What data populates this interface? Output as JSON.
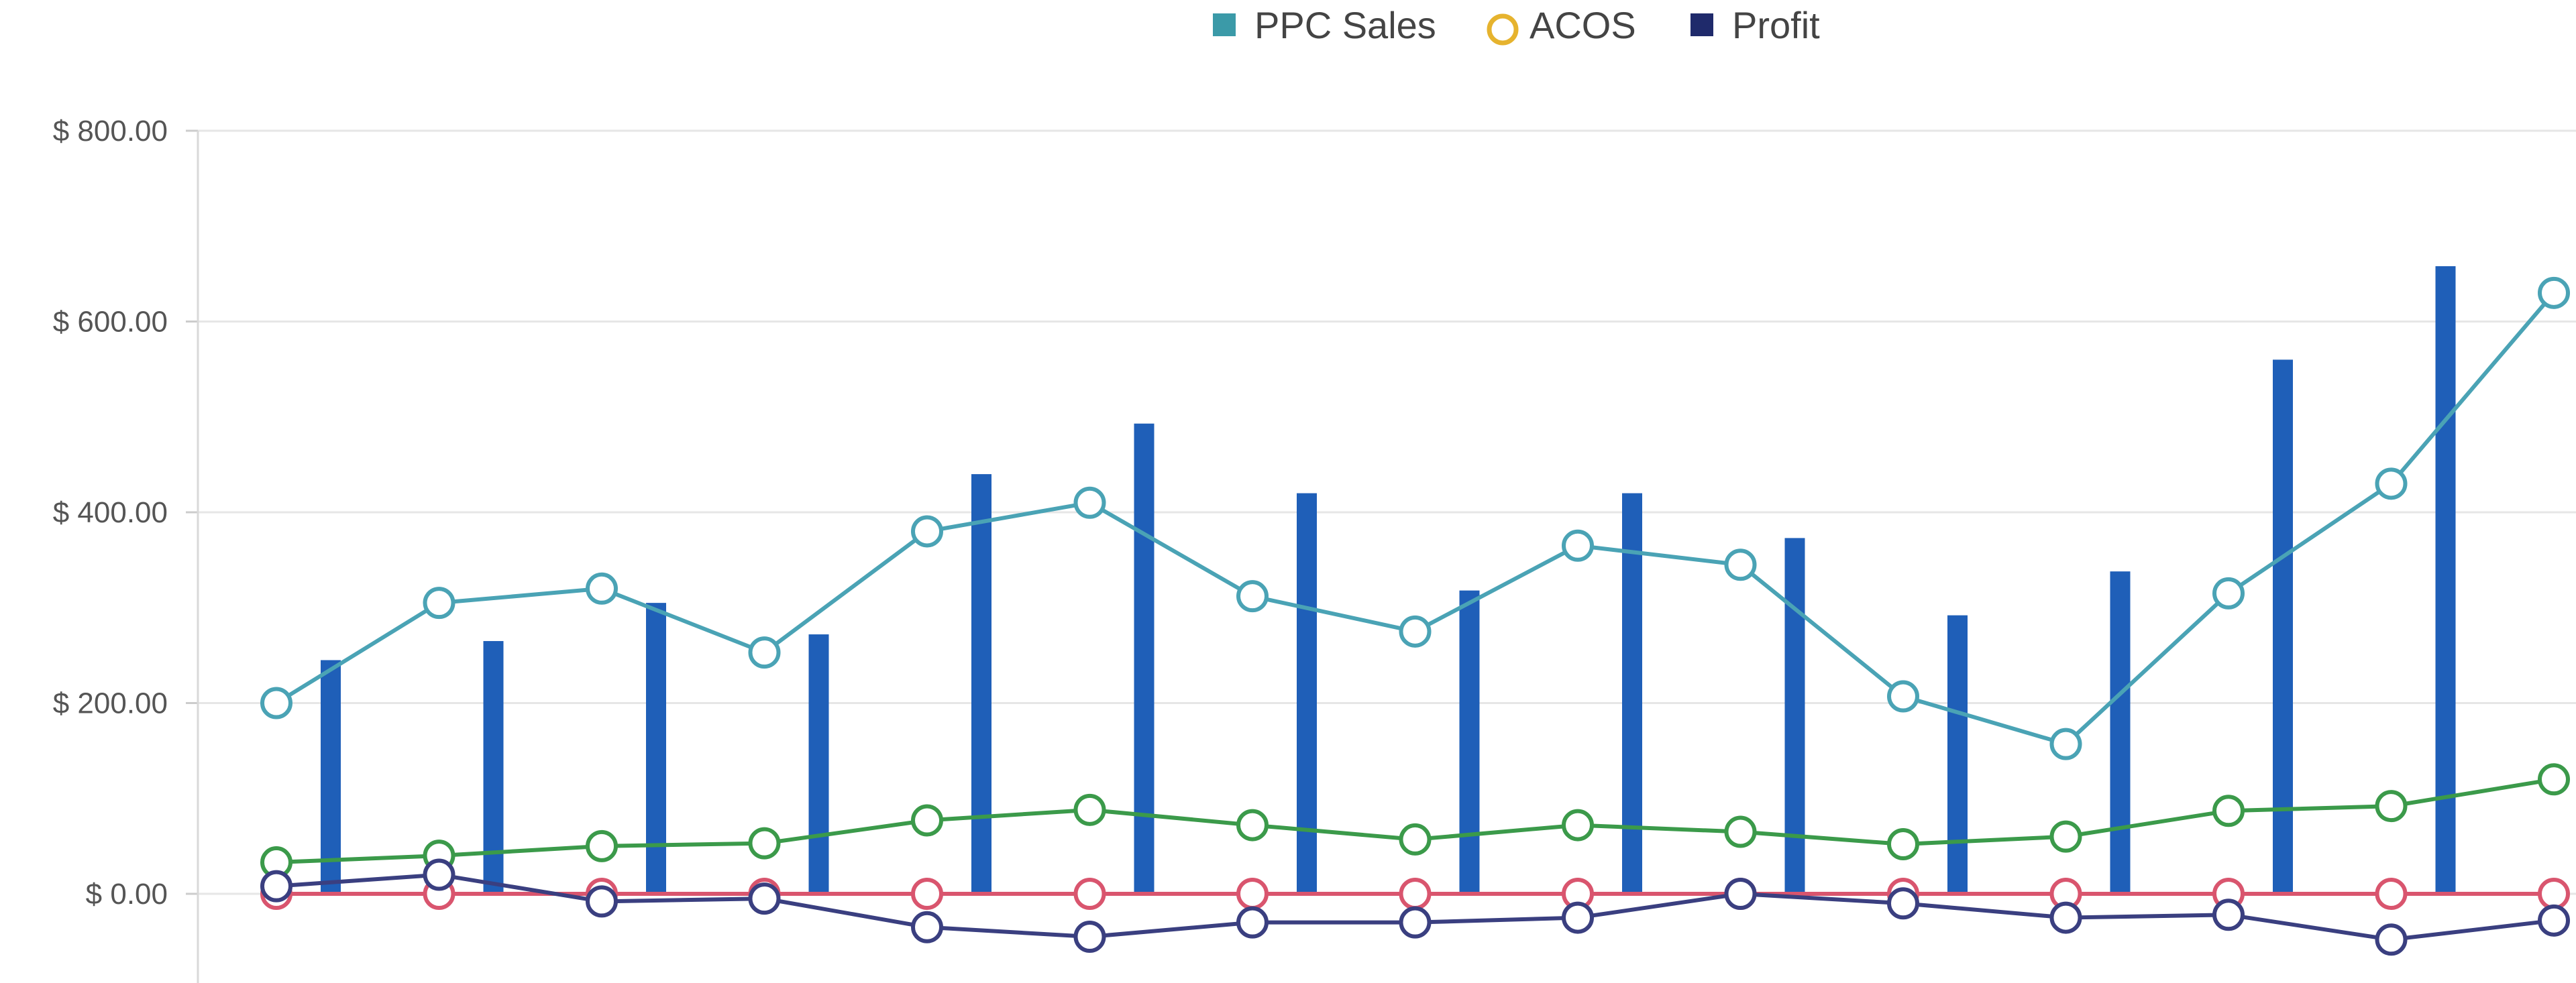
{
  "chart_data": {
    "type": "bar",
    "title": "",
    "xlabel": "",
    "ylabel": "",
    "ylim": [
      -100,
      800
    ],
    "yticks": [
      0,
      200,
      400,
      600,
      800
    ],
    "ytick_labels": [
      "$ 0.00",
      "$ 200.00",
      "$ 400.00",
      "$ 600.00",
      "$ 800.00"
    ],
    "grid": true,
    "legend_position": "top-center",
    "legend": [
      {
        "label": "PPC Sales",
        "marker": "square",
        "color": "#3b9aa8"
      },
      {
        "label": "ACOS",
        "marker": "circle",
        "color": "#e6b32e"
      },
      {
        "label": "Profit",
        "marker": "square",
        "color": "#1f2a6b"
      }
    ],
    "bars": {
      "color": "#1f5fb8",
      "values": [
        245,
        265,
        305,
        272,
        440,
        493,
        420,
        318,
        420,
        373,
        292,
        338,
        560,
        658
      ]
    },
    "series": [
      {
        "color": "#4aa3b5",
        "values": [
          200,
          305,
          320,
          253,
          380,
          410,
          312,
          275,
          365,
          345,
          207,
          157,
          315,
          430,
          630
        ]
      },
      {
        "color": "#3b9a4a",
        "values": [
          33,
          40,
          50,
          53,
          77,
          88,
          72,
          57,
          72,
          65,
          52,
          60,
          87,
          92,
          120
        ]
      },
      {
        "color": "#d9556e",
        "values": [
          0,
          0,
          0,
          0,
          0,
          0,
          0,
          0,
          0,
          0,
          0,
          0,
          0,
          0,
          0
        ]
      },
      {
        "color": "#3a3f80",
        "values": [
          8,
          20,
          -8,
          -5,
          -35,
          -45,
          -30,
          -30,
          -25,
          0,
          -10,
          -25,
          -22,
          -48,
          -28
        ]
      }
    ]
  }
}
